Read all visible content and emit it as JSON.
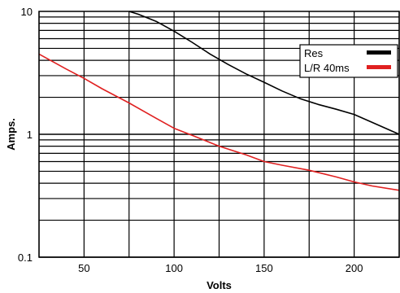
{
  "chart_data": {
    "type": "line",
    "title": "",
    "xlabel": "Volts",
    "ylabel": "Amps.",
    "xlim": [
      25,
      225
    ],
    "ylim": [
      0.1,
      10
    ],
    "yscale": "log",
    "grid": true,
    "x_ticks": [
      50,
      100,
      150,
      200
    ],
    "x_tick_labels": [
      "50",
      "100",
      "150",
      "200"
    ],
    "y_ticks": [
      0.1,
      1,
      10
    ],
    "y_tick_labels": [
      "0.1",
      "1",
      "10"
    ],
    "legend_position": "top-right",
    "series": [
      {
        "name": "Res",
        "color": "#000000",
        "x": [
          75,
          80,
          90,
          100,
          110,
          120,
          130,
          140,
          150,
          160,
          170,
          180,
          190,
          200,
          210,
          225
        ],
        "y": [
          10.0,
          9.5,
          8.3,
          6.9,
          5.6,
          4.5,
          3.7,
          3.1,
          2.65,
          2.25,
          1.95,
          1.75,
          1.6,
          1.45,
          1.25,
          1.0
        ]
      },
      {
        "name": "L/R 40ms",
        "color": "#e02020",
        "x": [
          25,
          40,
          50,
          60,
          75,
          90,
          100,
          110,
          125,
          140,
          150,
          160,
          175,
          190,
          200,
          210,
          225
        ],
        "y": [
          4.5,
          3.4,
          2.85,
          2.35,
          1.8,
          1.35,
          1.12,
          0.98,
          0.8,
          0.68,
          0.6,
          0.56,
          0.51,
          0.45,
          0.41,
          0.38,
          0.35
        ]
      }
    ]
  }
}
